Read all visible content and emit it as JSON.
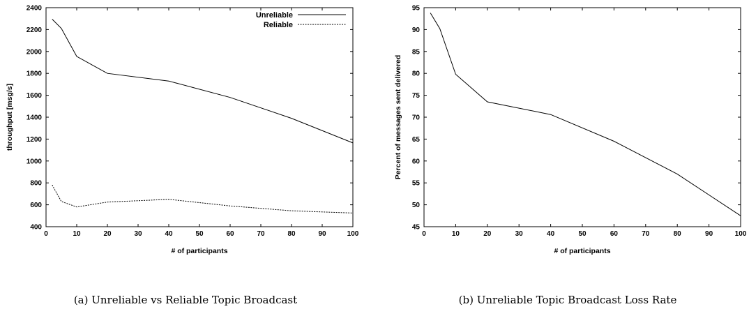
{
  "chart_data": [
    {
      "type": "line",
      "title": "",
      "caption": "(a) Unreliable vs Reliable Topic Broadcast",
      "xlabel": "# of participants",
      "ylabel": "throughput [msg/s]",
      "xlim": [
        0,
        100
      ],
      "ylim": [
        400,
        2400
      ],
      "xticks": [
        "0",
        "10",
        "20",
        "30",
        "40",
        "50",
        "60",
        "70",
        "80",
        "90",
        "100"
      ],
      "yticks": [
        "400",
        "600",
        "800",
        "1000",
        "1200",
        "1400",
        "1600",
        "1800",
        "2000",
        "2200",
        "2400"
      ],
      "grid": false,
      "legend_position": "top-right",
      "series": [
        {
          "name": "Unreliable",
          "style": "solid",
          "x": [
            2,
            5,
            10,
            20,
            40,
            60,
            80,
            100
          ],
          "y": [
            2295,
            2210,
            1955,
            1800,
            1730,
            1580,
            1390,
            1165
          ]
        },
        {
          "name": "Reliable",
          "style": "dashed",
          "x": [
            2,
            5,
            10,
            20,
            40,
            60,
            80,
            100
          ],
          "y": [
            780,
            630,
            580,
            625,
            650,
            590,
            545,
            525
          ]
        }
      ]
    },
    {
      "type": "line",
      "title": "",
      "caption": "(b) Unreliable Topic Broadcast Loss Rate",
      "xlabel": "# of participants",
      "ylabel": "Percent of messages sent delivered",
      "xlim": [
        0,
        100
      ],
      "ylim": [
        45,
        95
      ],
      "xticks": [
        "0",
        "10",
        "20",
        "30",
        "40",
        "50",
        "60",
        "70",
        "80",
        "90",
        "100"
      ],
      "yticks": [
        "45",
        "50",
        "55",
        "60",
        "65",
        "70",
        "75",
        "80",
        "85",
        "90",
        "95"
      ],
      "grid": false,
      "series": [
        {
          "style": "solid",
          "x": [
            2,
            5,
            10,
            20,
            40,
            60,
            80,
            100
          ],
          "y": [
            93.8,
            90.2,
            79.8,
            73.5,
            70.6,
            64.5,
            57.0,
            47.5
          ]
        }
      ]
    }
  ]
}
